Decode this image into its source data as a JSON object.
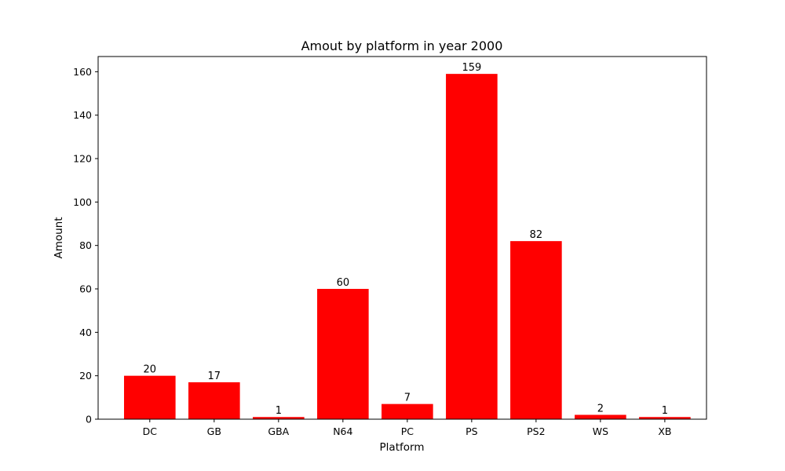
{
  "chart_data": {
    "type": "bar",
    "title": "Amout by platform in year 2000",
    "xlabel": "Platform",
    "ylabel": "Amount",
    "categories": [
      "DC",
      "GB",
      "GBA",
      "N64",
      "PC",
      "PS",
      "PS2",
      "WS",
      "XB"
    ],
    "values": [
      20,
      17,
      1,
      60,
      7,
      159,
      82,
      2,
      1
    ],
    "ylim": [
      0,
      167
    ],
    "yticks": [
      0,
      20,
      40,
      60,
      80,
      100,
      120,
      140,
      160
    ],
    "bar_color": "#ff0000",
    "grid": false,
    "legend": false,
    "data_labels": true
  }
}
